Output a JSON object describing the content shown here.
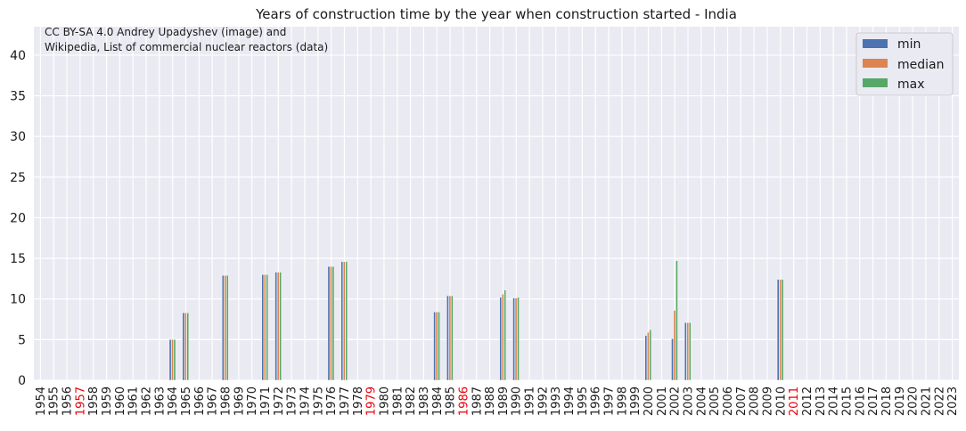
{
  "chart_data": {
    "type": "bar",
    "title": "Years of construction time by the year when construction started - India",
    "credit": [
      "CC BY-SA 4.0 Andrey Upadyshev (image) and",
      "Wikipedia, List of commercial nuclear reactors (data)"
    ],
    "xlabel": "",
    "ylabel": "",
    "ylim": [
      0,
      43.5
    ],
    "yticks": [
      0,
      5,
      10,
      15,
      20,
      25,
      30,
      35,
      40
    ],
    "grid": true,
    "legend_position": "top-right",
    "highlighted_categories": [
      "1957",
      "1979",
      "1986",
      "2011"
    ],
    "highlight_color": "#e8000b",
    "tick_color": "#1a1a1a",
    "categories": [
      "1954",
      "1955",
      "1956",
      "1957",
      "1958",
      "1959",
      "1960",
      "1961",
      "1962",
      "1963",
      "1964",
      "1965",
      "1966",
      "1967",
      "1968",
      "1969",
      "1970",
      "1971",
      "1972",
      "1973",
      "1974",
      "1975",
      "1976",
      "1977",
      "1978",
      "1979",
      "1980",
      "1981",
      "1982",
      "1983",
      "1984",
      "1985",
      "1986",
      "1987",
      "1988",
      "1989",
      "1990",
      "1991",
      "1992",
      "1993",
      "1994",
      "1995",
      "1996",
      "1997",
      "1998",
      "1999",
      "2000",
      "2001",
      "2002",
      "2003",
      "2004",
      "2005",
      "2006",
      "2007",
      "2008",
      "2009",
      "2010",
      "2011",
      "2012",
      "2013",
      "2014",
      "2015",
      "2016",
      "2017",
      "2018",
      "2019",
      "2020",
      "2021",
      "2022",
      "2023"
    ],
    "series": [
      {
        "name": "min",
        "color": "#4c72b0",
        "values": [
          null,
          null,
          null,
          null,
          null,
          null,
          null,
          null,
          null,
          null,
          5.0,
          8.3,
          null,
          null,
          12.9,
          null,
          null,
          13.0,
          13.3,
          null,
          null,
          null,
          14.0,
          14.6,
          null,
          null,
          null,
          null,
          null,
          null,
          8.4,
          10.4,
          null,
          null,
          null,
          10.2,
          10.1,
          null,
          null,
          null,
          null,
          null,
          null,
          null,
          null,
          null,
          5.5,
          null,
          5.1,
          7.1,
          null,
          null,
          null,
          null,
          null,
          null,
          12.4,
          null,
          null,
          null,
          null,
          null,
          null,
          null,
          null,
          null,
          null,
          null,
          null,
          null
        ]
      },
      {
        "name": "median",
        "color": "#dd8452",
        "values": [
          null,
          null,
          null,
          null,
          null,
          null,
          null,
          null,
          null,
          null,
          5.0,
          8.3,
          null,
          null,
          12.9,
          null,
          null,
          13.0,
          13.3,
          null,
          null,
          null,
          14.0,
          14.6,
          null,
          null,
          null,
          null,
          null,
          null,
          8.4,
          10.4,
          null,
          null,
          null,
          10.6,
          10.1,
          null,
          null,
          null,
          null,
          null,
          null,
          null,
          null,
          null,
          5.9,
          null,
          8.6,
          7.1,
          null,
          null,
          null,
          null,
          null,
          null,
          12.4,
          null,
          null,
          null,
          null,
          null,
          null,
          null,
          null,
          null,
          null,
          null,
          null,
          null
        ]
      },
      {
        "name": "max",
        "color": "#55a868",
        "values": [
          null,
          null,
          null,
          null,
          null,
          null,
          null,
          null,
          null,
          null,
          5.0,
          8.3,
          null,
          null,
          12.9,
          null,
          null,
          13.0,
          13.3,
          null,
          null,
          null,
          14.0,
          14.6,
          null,
          null,
          null,
          null,
          null,
          null,
          8.4,
          10.4,
          null,
          null,
          null,
          11.1,
          10.2,
          null,
          null,
          null,
          null,
          null,
          null,
          null,
          null,
          null,
          6.2,
          null,
          14.7,
          7.1,
          null,
          null,
          null,
          null,
          null,
          null,
          12.4,
          null,
          null,
          null,
          null,
          null,
          null,
          null,
          null,
          null,
          null,
          null,
          null,
          null
        ]
      }
    ]
  }
}
